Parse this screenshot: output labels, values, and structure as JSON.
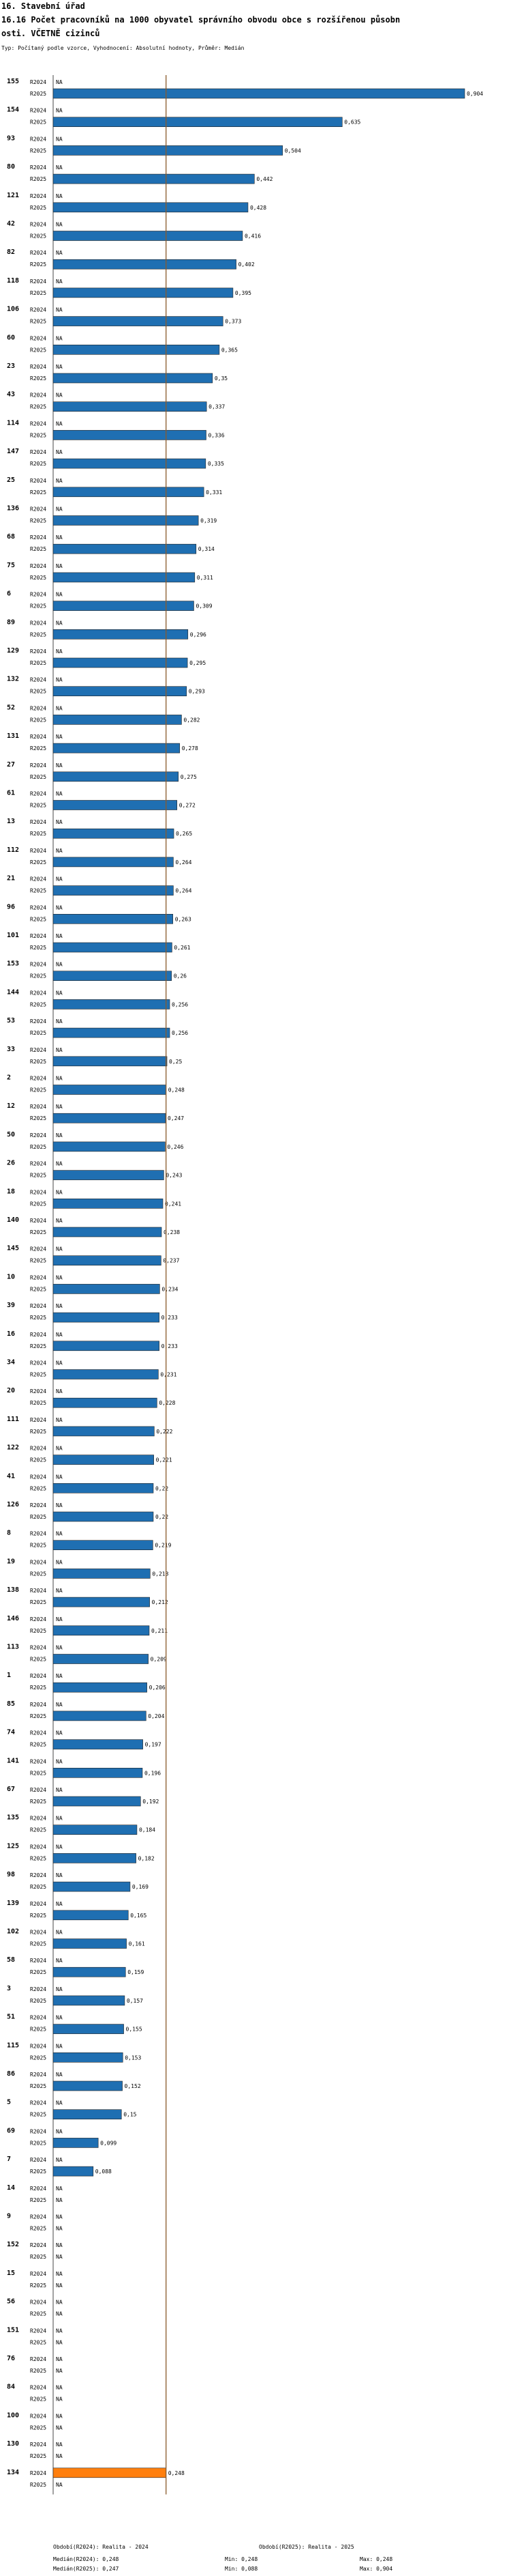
{
  "header": {
    "line1": "16. Stavební úřad",
    "line2": "16.16 Počet pracovníků na 1000 obyvatel správního obvodu obce s rozšířenou působn",
    "line3": "osti. VČETNĚ cizinců",
    "subtitle": "Typ: Počítaný podle vzorce, Vyhodnocení: Absolutní hodnoty, Průměr: Medián"
  },
  "chart_data": {
    "type": "bar",
    "orientation": "horizontal",
    "xlim": [
      0,
      0.904
    ],
    "reference_line": 0.248,
    "series": [
      {
        "name": "R2024",
        "color": "#1f6fb2"
      },
      {
        "name": "R2025",
        "color": "#1f6fb2"
      }
    ],
    "highlight_color": "#ff7f0e",
    "na_label": "NA",
    "groups": [
      {
        "id": "155",
        "r2024": null,
        "r2025": 0.904,
        "r2025_label": "0,904"
      },
      {
        "id": "154",
        "r2024": null,
        "r2025": 0.635,
        "r2025_label": "0,635"
      },
      {
        "id": "93",
        "r2024": null,
        "r2025": 0.504,
        "r2025_label": "0,504"
      },
      {
        "id": "80",
        "r2024": null,
        "r2025": 0.442,
        "r2025_label": "0,442"
      },
      {
        "id": "121",
        "r2024": null,
        "r2025": 0.428,
        "r2025_label": "0,428"
      },
      {
        "id": "42",
        "r2024": null,
        "r2025": 0.416,
        "r2025_label": "0,416"
      },
      {
        "id": "82",
        "r2024": null,
        "r2025": 0.402,
        "r2025_label": "0,402"
      },
      {
        "id": "118",
        "r2024": null,
        "r2025": 0.395,
        "r2025_label": "0,395"
      },
      {
        "id": "106",
        "r2024": null,
        "r2025": 0.373,
        "r2025_label": "0,373"
      },
      {
        "id": "60",
        "r2024": null,
        "r2025": 0.365,
        "r2025_label": "0,365"
      },
      {
        "id": "23",
        "r2024": null,
        "r2025": 0.35,
        "r2025_label": "0,35"
      },
      {
        "id": "43",
        "r2024": null,
        "r2025": 0.337,
        "r2025_label": "0,337"
      },
      {
        "id": "114",
        "r2024": null,
        "r2025": 0.336,
        "r2025_label": "0,336"
      },
      {
        "id": "147",
        "r2024": null,
        "r2025": 0.335,
        "r2025_label": "0,335"
      },
      {
        "id": "25",
        "r2024": null,
        "r2025": 0.331,
        "r2025_label": "0,331"
      },
      {
        "id": "136",
        "r2024": null,
        "r2025": 0.319,
        "r2025_label": "0,319"
      },
      {
        "id": "68",
        "r2024": null,
        "r2025": 0.314,
        "r2025_label": "0,314"
      },
      {
        "id": "75",
        "r2024": null,
        "r2025": 0.311,
        "r2025_label": "0,311"
      },
      {
        "id": "6",
        "r2024": null,
        "r2025": 0.309,
        "r2025_label": "0,309"
      },
      {
        "id": "89",
        "r2024": null,
        "r2025": 0.296,
        "r2025_label": "0,296"
      },
      {
        "id": "129",
        "r2024": null,
        "r2025": 0.295,
        "r2025_label": "0,295"
      },
      {
        "id": "132",
        "r2024": null,
        "r2025": 0.293,
        "r2025_label": "0,293"
      },
      {
        "id": "52",
        "r2024": null,
        "r2025": 0.282,
        "r2025_label": "0,282"
      },
      {
        "id": "131",
        "r2024": null,
        "r2025": 0.278,
        "r2025_label": "0,278"
      },
      {
        "id": "27",
        "r2024": null,
        "r2025": 0.275,
        "r2025_label": "0,275"
      },
      {
        "id": "61",
        "r2024": null,
        "r2025": 0.272,
        "r2025_label": "0,272"
      },
      {
        "id": "13",
        "r2024": null,
        "r2025": 0.265,
        "r2025_label": "0,265"
      },
      {
        "id": "112",
        "r2024": null,
        "r2025": 0.264,
        "r2025_label": "0,264"
      },
      {
        "id": "21",
        "r2024": null,
        "r2025": 0.264,
        "r2025_label": "0,264"
      },
      {
        "id": "96",
        "r2024": null,
        "r2025": 0.263,
        "r2025_label": "0,263"
      },
      {
        "id": "101",
        "r2024": null,
        "r2025": 0.261,
        "r2025_label": "0,261"
      },
      {
        "id": "153",
        "r2024": null,
        "r2025": 0.26,
        "r2025_label": "0,26"
      },
      {
        "id": "144",
        "r2024": null,
        "r2025": 0.256,
        "r2025_label": "0,256"
      },
      {
        "id": "53",
        "r2024": null,
        "r2025": 0.256,
        "r2025_label": "0,256"
      },
      {
        "id": "33",
        "r2024": null,
        "r2025": 0.25,
        "r2025_label": "0,25"
      },
      {
        "id": "2",
        "r2024": null,
        "r2025": 0.248,
        "r2025_label": "0,248"
      },
      {
        "id": "12",
        "r2024": null,
        "r2025": 0.247,
        "r2025_label": "0,247"
      },
      {
        "id": "50",
        "r2024": null,
        "r2025": 0.246,
        "r2025_label": "0,246"
      },
      {
        "id": "26",
        "r2024": null,
        "r2025": 0.243,
        "r2025_label": "0,243"
      },
      {
        "id": "18",
        "r2024": null,
        "r2025": 0.241,
        "r2025_label": "0,241"
      },
      {
        "id": "140",
        "r2024": null,
        "r2025": 0.238,
        "r2025_label": "0,238"
      },
      {
        "id": "145",
        "r2024": null,
        "r2025": 0.237,
        "r2025_label": "0,237"
      },
      {
        "id": "10",
        "r2024": null,
        "r2025": 0.234,
        "r2025_label": "0,234"
      },
      {
        "id": "39",
        "r2024": null,
        "r2025": 0.233,
        "r2025_label": "0,233"
      },
      {
        "id": "16",
        "r2024": null,
        "r2025": 0.233,
        "r2025_label": "0,233"
      },
      {
        "id": "34",
        "r2024": null,
        "r2025": 0.231,
        "r2025_label": "0,231"
      },
      {
        "id": "20",
        "r2024": null,
        "r2025": 0.228,
        "r2025_label": "0,228"
      },
      {
        "id": "111",
        "r2024": null,
        "r2025": 0.222,
        "r2025_label": "0,222"
      },
      {
        "id": "122",
        "r2024": null,
        "r2025": 0.221,
        "r2025_label": "0,221"
      },
      {
        "id": "41",
        "r2024": null,
        "r2025": 0.22,
        "r2025_label": "0,22"
      },
      {
        "id": "126",
        "r2024": null,
        "r2025": 0.22,
        "r2025_label": "0,22"
      },
      {
        "id": "8",
        "r2024": null,
        "r2025": 0.219,
        "r2025_label": "0,219"
      },
      {
        "id": "19",
        "r2024": null,
        "r2025": 0.213,
        "r2025_label": "0,213"
      },
      {
        "id": "138",
        "r2024": null,
        "r2025": 0.212,
        "r2025_label": "0,212"
      },
      {
        "id": "146",
        "r2024": null,
        "r2025": 0.211,
        "r2025_label": "0,211"
      },
      {
        "id": "113",
        "r2024": null,
        "r2025": 0.209,
        "r2025_label": "0,209"
      },
      {
        "id": "1",
        "r2024": null,
        "r2025": 0.206,
        "r2025_label": "0,206"
      },
      {
        "id": "85",
        "r2024": null,
        "r2025": 0.204,
        "r2025_label": "0,204"
      },
      {
        "id": "74",
        "r2024": null,
        "r2025": 0.197,
        "r2025_label": "0,197"
      },
      {
        "id": "141",
        "r2024": null,
        "r2025": 0.196,
        "r2025_label": "0,196"
      },
      {
        "id": "67",
        "r2024": null,
        "r2025": 0.192,
        "r2025_label": "0,192"
      },
      {
        "id": "135",
        "r2024": null,
        "r2025": 0.184,
        "r2025_label": "0,184"
      },
      {
        "id": "125",
        "r2024": null,
        "r2025": 0.182,
        "r2025_label": "0,182"
      },
      {
        "id": "98",
        "r2024": null,
        "r2025": 0.169,
        "r2025_label": "0,169"
      },
      {
        "id": "139",
        "r2024": null,
        "r2025": 0.165,
        "r2025_label": "0,165"
      },
      {
        "id": "102",
        "r2024": null,
        "r2025": 0.161,
        "r2025_label": "0,161"
      },
      {
        "id": "58",
        "r2024": null,
        "r2025": 0.159,
        "r2025_label": "0,159"
      },
      {
        "id": "3",
        "r2024": null,
        "r2025": 0.157,
        "r2025_label": "0,157"
      },
      {
        "id": "51",
        "r2024": null,
        "r2025": 0.155,
        "r2025_label": "0,155"
      },
      {
        "id": "115",
        "r2024": null,
        "r2025": 0.153,
        "r2025_label": "0,153"
      },
      {
        "id": "86",
        "r2024": null,
        "r2025": 0.152,
        "r2025_label": "0,152"
      },
      {
        "id": "5",
        "r2024": null,
        "r2025": 0.15,
        "r2025_label": "0,15"
      },
      {
        "id": "69",
        "r2024": null,
        "r2025": 0.099,
        "r2025_label": "0,099"
      },
      {
        "id": "7",
        "r2024": null,
        "r2025": 0.088,
        "r2025_label": "0,088"
      },
      {
        "id": "14",
        "r2024": null,
        "r2025": null
      },
      {
        "id": "9",
        "r2024": null,
        "r2025": null
      },
      {
        "id": "152",
        "r2024": null,
        "r2025": null
      },
      {
        "id": "15",
        "r2024": null,
        "r2025": null
      },
      {
        "id": "56",
        "r2024": null,
        "r2025": null
      },
      {
        "id": "151",
        "r2024": null,
        "r2025": null
      },
      {
        "id": "76",
        "r2024": null,
        "r2025": null
      },
      {
        "id": "84",
        "r2024": null,
        "r2025": null
      },
      {
        "id": "100",
        "r2024": null,
        "r2025": null
      },
      {
        "id": "130",
        "r2024": null,
        "r2025": null
      },
      {
        "id": "134",
        "r2024": 0.248,
        "r2024_label": "0,248",
        "r2024_highlight": true,
        "r2025": null
      }
    ]
  },
  "footer": {
    "col1_head": "Období(R2024): Realita - 2024",
    "col2_head": "Období(R2025): Realita - 2025",
    "median1": "Medián(R2024): 0,248",
    "min1": "Min: 0,248",
    "max1": "Max: 0,248",
    "median2": "Medián(R2025): 0,247",
    "min2": "Min: 0,088",
    "max2": "Max: 0,904"
  }
}
